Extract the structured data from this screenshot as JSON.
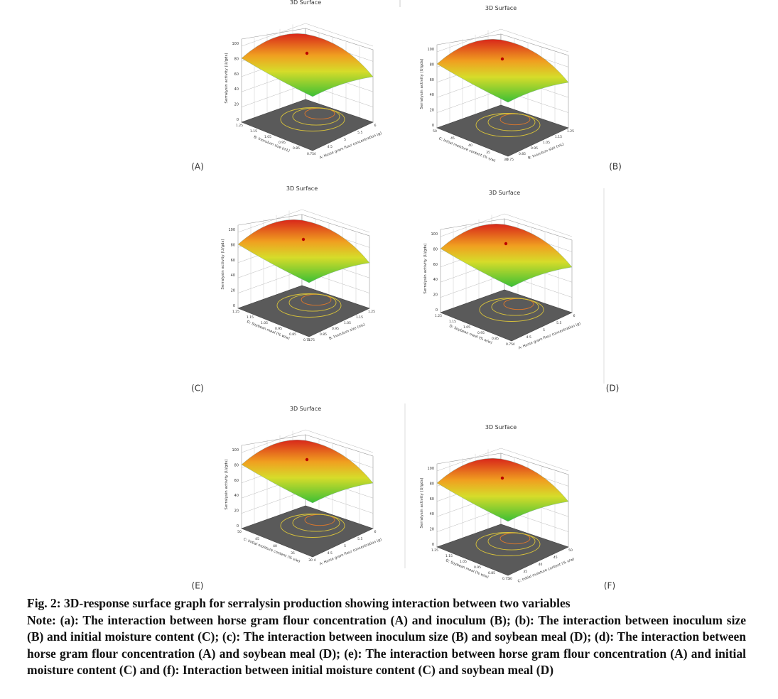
{
  "figure": {
    "panels": [
      {
        "label": "(A)",
        "title": "3D Surface",
        "z_label": "Serralysin activity (U/gds)",
        "z_ticks": [
          0,
          20,
          40,
          60,
          80,
          100
        ],
        "left_axis": {
          "label": "B: Inoculum size (mL)",
          "ticks": [
            0.75,
            0.85,
            0.95,
            1.05,
            1.15,
            1.25
          ]
        },
        "right_axis": {
          "label": "A: Horse gram flour concentration (g)",
          "ticks": [
            4,
            4.5,
            5,
            5.5,
            6
          ]
        }
      },
      {
        "label": "(B)",
        "title": "3D Surface",
        "z_label": "Serralysin activity (U/gds)",
        "z_ticks": [
          0,
          20,
          40,
          60,
          80,
          100
        ],
        "left_axis": {
          "label": "C: Initial moisture content (% v/w)",
          "ticks": [
            30,
            35,
            40,
            45,
            50
          ]
        },
        "right_axis": {
          "label": "B: Inoculum size (mL)",
          "ticks": [
            0.75,
            0.85,
            0.95,
            1.05,
            1.15,
            1.25
          ]
        }
      },
      {
        "label": "(C)",
        "title": "3D Surface",
        "z_label": "Serralysin activity (U/gds)",
        "z_ticks": [
          0,
          20,
          40,
          60,
          80,
          100
        ],
        "left_axis": {
          "label": "D: Soybean meal (% w/w)",
          "ticks": [
            0.75,
            0.85,
            0.95,
            1.05,
            1.15,
            1.25
          ]
        },
        "right_axis": {
          "label": "B: Inoculum size (mL)",
          "ticks": [
            0.75,
            0.85,
            0.95,
            1.05,
            1.15,
            1.25
          ]
        }
      },
      {
        "label": "(D)",
        "title": "3D Surface",
        "z_label": "Serralysin activity (U/gds)",
        "z_ticks": [
          0,
          20,
          40,
          60,
          80,
          100
        ],
        "left_axis": {
          "label": "D: Soybean meal (% w/w)",
          "ticks": [
            0.75,
            0.85,
            0.95,
            1.05,
            1.15,
            1.25
          ]
        },
        "right_axis": {
          "label": "A: Horse gram flour concentration (g)",
          "ticks": [
            4,
            4.5,
            5,
            5.5,
            6
          ]
        }
      },
      {
        "label": "(E)",
        "title": "3D Surface",
        "z_label": "Serralysin activity (U/gds)",
        "z_ticks": [
          0,
          20,
          40,
          60,
          80,
          100
        ],
        "left_axis": {
          "label": "C: Initial moisture content (% v/w)",
          "ticks": [
            30,
            35,
            40,
            45,
            50
          ]
        },
        "right_axis": {
          "label": "A: Horse gram flour concentration (g)",
          "ticks": [
            4,
            4.5,
            5,
            5.5,
            6
          ]
        }
      },
      {
        "label": "(F)",
        "title": "3D Surface",
        "z_label": "Serralysin activity (U/gds)",
        "z_ticks": [
          0,
          20,
          40,
          60,
          80,
          100
        ],
        "left_axis": {
          "label": "D: Soybean meal (% w/w)",
          "ticks": [
            0.75,
            0.85,
            0.95,
            1.05,
            1.15,
            1.25
          ]
        },
        "right_axis": {
          "label": "C: Initial moisture content (% v/w)",
          "ticks": [
            30,
            35,
            40,
            45,
            50
          ]
        }
      }
    ],
    "caption": {
      "title": "Fig. 2: 3D-response surface graph for serralysin production showing interaction between two variables",
      "note": "Note: (a): The interaction between horse gram flour concentration (A) and inoculum (B); (b): The interaction between inoculum size (B) and initial moisture content (C); (c): The interaction between inoculum size (B) and soybean meal (D); (d): The interaction between horse gram flour concentration (A) and soybean meal (D); (e): The interaction between horse gram flour concentration (A) and initial moisture content (C) and (f): Interaction between initial moisture content (C) and soybean meal (D)"
    }
  }
}
